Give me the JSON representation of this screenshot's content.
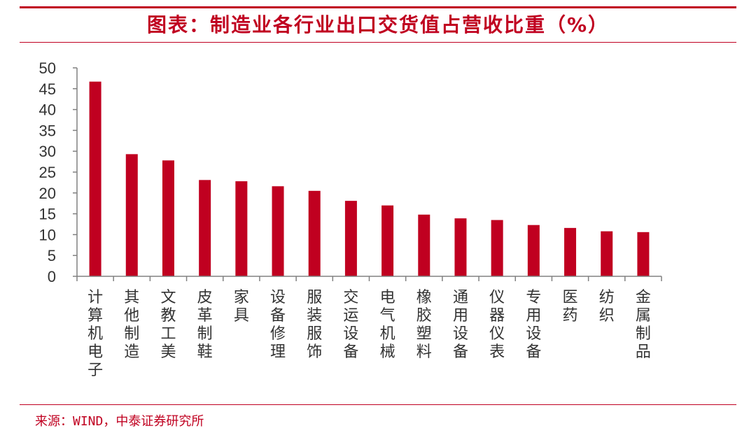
{
  "title": "图表：制造业各行业出口交货值占营收比重（%）",
  "source": "来源：WIND，中泰证券研究所",
  "colors": {
    "accent": "#c00020",
    "bar": "#c00020",
    "axis": "#808080",
    "text": "#333333"
  },
  "chart_data": {
    "type": "bar",
    "title": "图表：制造业各行业出口交货值占营收比重（%）",
    "xlabel": "",
    "ylabel": "",
    "ylim": [
      0,
      50
    ],
    "yticks": [
      0,
      5,
      10,
      15,
      20,
      25,
      30,
      35,
      40,
      45,
      50
    ],
    "grid": false,
    "categories": [
      "计算机电子",
      "其他制造",
      "文教工美",
      "皮革制鞋",
      "家具",
      "设备修理",
      "服装服饰",
      "交运设备",
      "电气机械",
      "橡胶塑料",
      "通用设备",
      "仪器仪表",
      "专用设备",
      "医药",
      "纺织",
      "金属制品"
    ],
    "values": [
      46.7,
      29.3,
      27.8,
      23.1,
      22.8,
      21.6,
      20.5,
      18.1,
      17.0,
      14.8,
      13.9,
      13.5,
      12.3,
      11.6,
      10.8,
      10.6
    ]
  }
}
